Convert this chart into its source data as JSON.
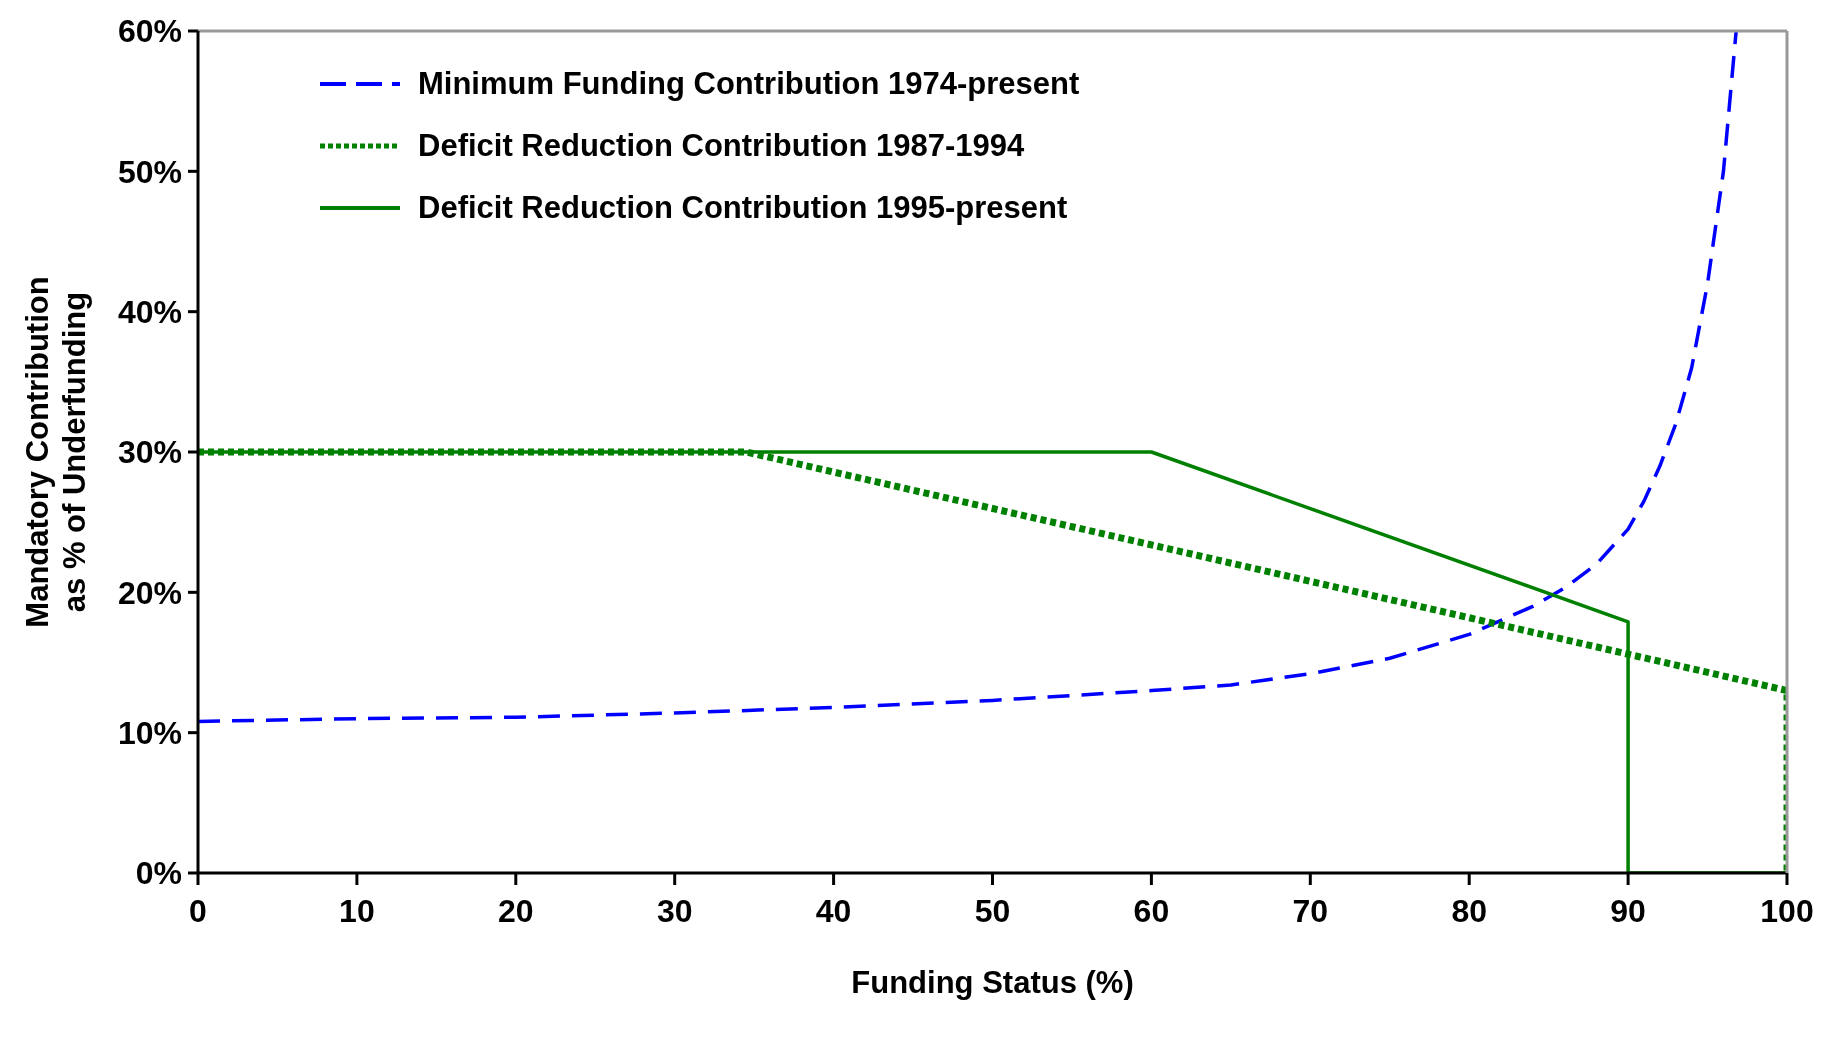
{
  "chart_data": {
    "type": "line",
    "xlabel": "Funding Status (%)",
    "ylabel": "Mandatory Contribution as % of Underfunding",
    "xlim": [
      0,
      100
    ],
    "xticks": [
      0,
      10,
      20,
      30,
      40,
      50,
      60,
      70,
      80,
      90,
      100
    ],
    "ylim": [
      0,
      60
    ],
    "yticks": [
      {
        "value": 0,
        "label": "0%"
      },
      {
        "value": 10,
        "label": "10%"
      },
      {
        "value": 20,
        "label": "20%"
      },
      {
        "value": 30,
        "label": "30%"
      },
      {
        "value": 40,
        "label": "40%"
      },
      {
        "value": 50,
        "label": "50%"
      },
      {
        "value": 60,
        "label": "60%"
      }
    ],
    "grid": false,
    "legend": "top left",
    "marker": "none",
    "series": [
      {
        "name": "Minimum Funding Contribution 1974-present",
        "color": "#0000ff",
        "line_style": "dashed",
        "x": [
          0,
          10,
          20,
          30,
          40,
          50,
          60,
          65,
          70,
          75,
          80,
          84,
          86,
          88,
          90,
          91,
          92,
          93,
          94,
          95,
          96,
          96.8
        ],
        "values": [
          10.8,
          11,
          11.1,
          11.4,
          11.8,
          12.3,
          13,
          13.4,
          14.2,
          15.3,
          17,
          19,
          20.3,
          22,
          24.5,
          26.5,
          29,
          32,
          36,
          42,
          50,
          60
        ]
      },
      {
        "name": "Deficit Reduction Contribution 1987-1994",
        "color": "#008000",
        "line_style": "dotted",
        "x": [
          0,
          34.5,
          100,
          100
        ],
        "values": [
          30,
          30,
          13,
          0
        ]
      },
      {
        "name": "Deficit Reduction Contribution 1995-present",
        "color": "#008000",
        "line_style": "solid",
        "x": [
          0,
          60,
          90,
          90,
          100
        ],
        "values": [
          30,
          30,
          17.9,
          0,
          0
        ]
      }
    ]
  }
}
